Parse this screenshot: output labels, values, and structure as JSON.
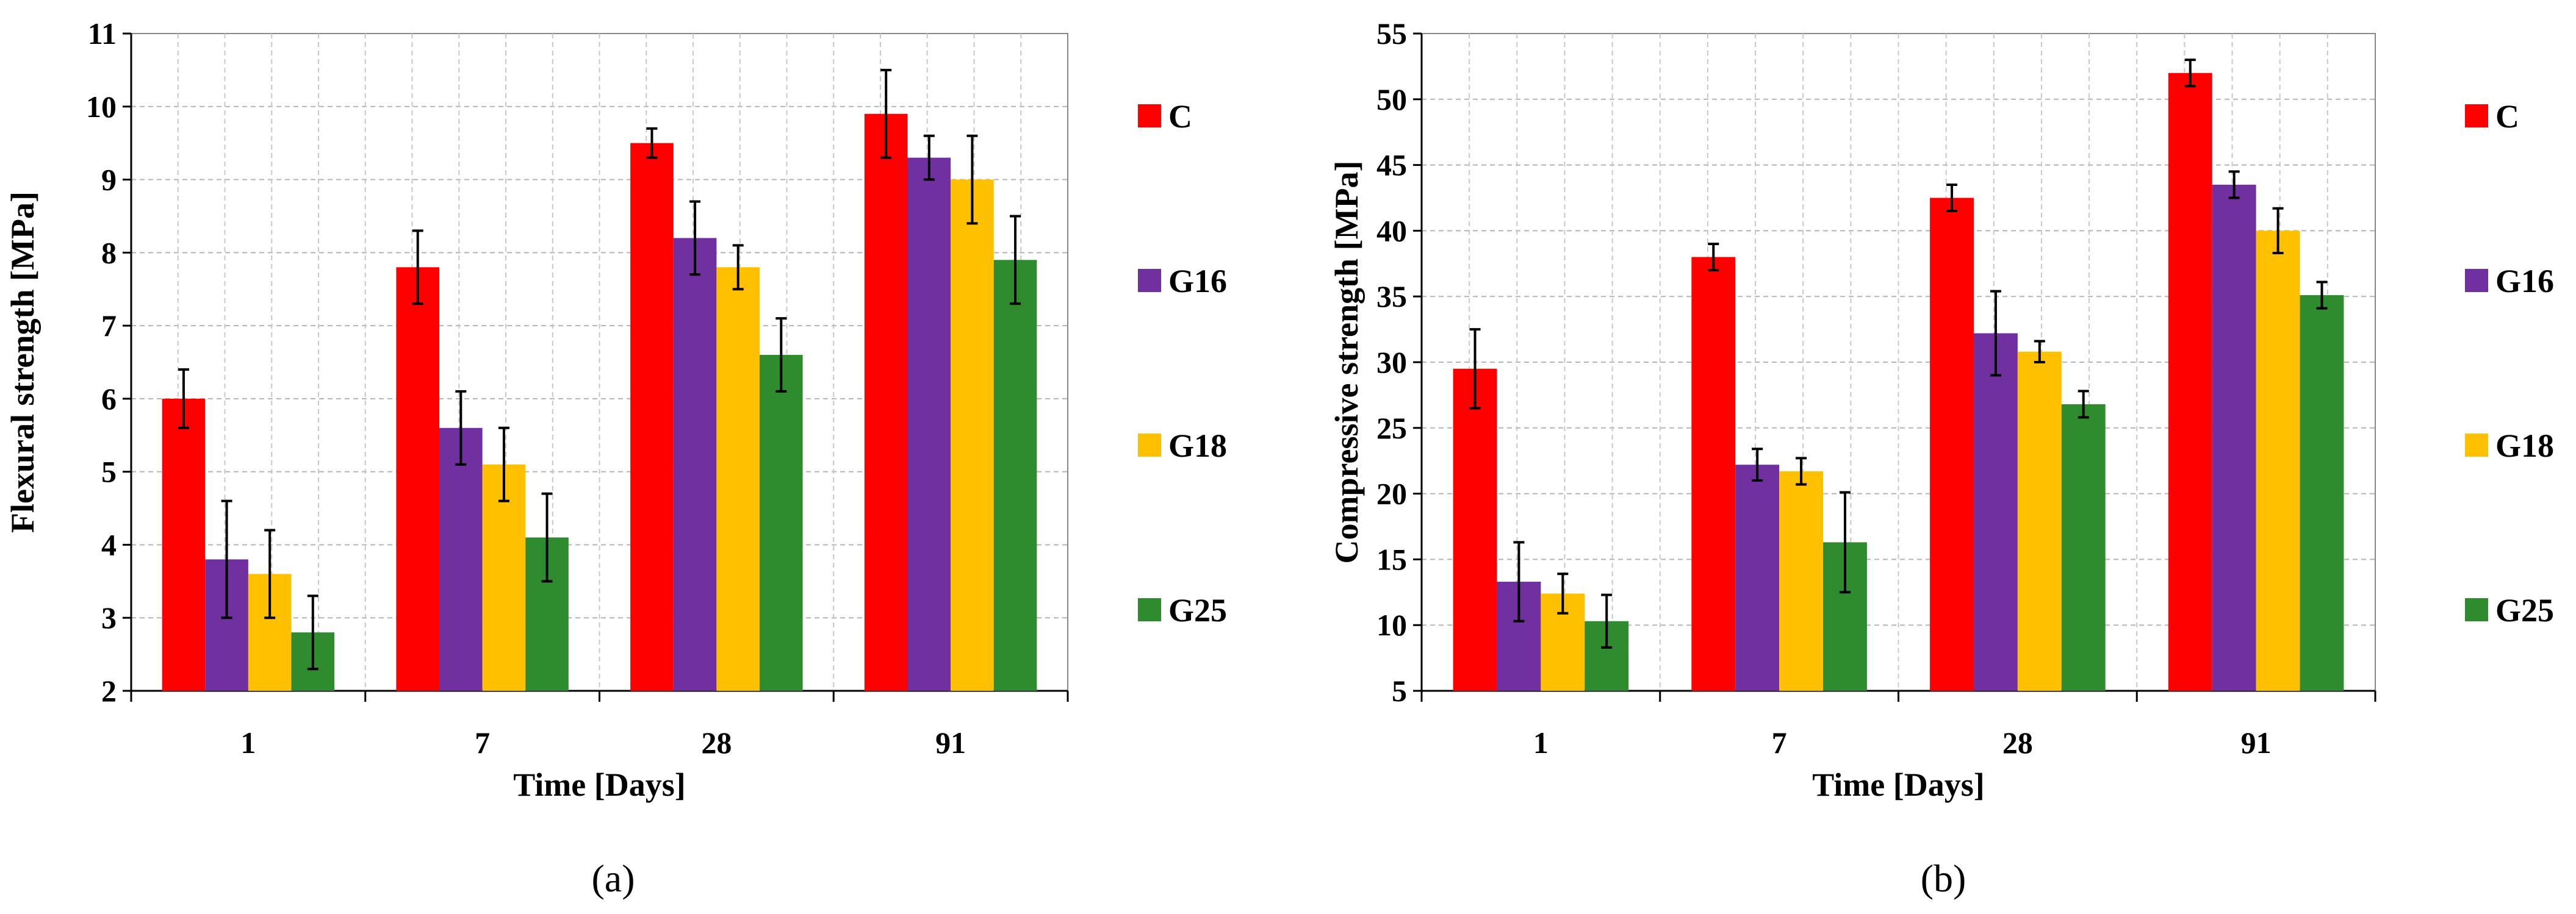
{
  "colors": {
    "C": "#ff0000",
    "G16": "#7030a0",
    "G18": "#ffc000",
    "G25": "#2e8b2e"
  },
  "chart_data": [
    {
      "type": "bar",
      "panel_label": "(a)",
      "categories": [
        "1",
        "7",
        "28",
        "91"
      ],
      "xlabel": "Time [Days]",
      "ylabel": "Flexural strength [MPa]",
      "ylim": [
        2,
        11
      ],
      "yticks": [
        "2",
        "3",
        "4",
        "5",
        "6",
        "7",
        "8",
        "9",
        "10",
        "11"
      ],
      "grid": true,
      "legend_position": "right",
      "series": [
        {
          "name": "C",
          "values": [
            6.0,
            7.8,
            9.5,
            9.9
          ],
          "errors": [
            0.4,
            0.5,
            0.2,
            0.6
          ]
        },
        {
          "name": "G16",
          "values": [
            3.8,
            5.6,
            8.2,
            9.3
          ],
          "errors": [
            0.8,
            0.5,
            0.5,
            0.3
          ]
        },
        {
          "name": "G18",
          "values": [
            3.6,
            5.1,
            7.8,
            9.0
          ],
          "errors": [
            0.6,
            0.5,
            0.3,
            0.6
          ]
        },
        {
          "name": "G25",
          "values": [
            2.8,
            4.1,
            6.6,
            7.9
          ],
          "errors": [
            0.5,
            0.6,
            0.5,
            0.6
          ]
        }
      ]
    },
    {
      "type": "bar",
      "panel_label": "(b)",
      "categories": [
        "1",
        "7",
        "28",
        "91"
      ],
      "xlabel": "Time [Days]",
      "ylabel": "Compressive strength [MPa]",
      "ylim": [
        5,
        55
      ],
      "yticks": [
        "5",
        "10",
        "15",
        "20",
        "25",
        "30",
        "35",
        "40",
        "45",
        "50",
        "55"
      ],
      "grid": true,
      "legend_position": "right",
      "series": [
        {
          "name": "C",
          "values": [
            29.5,
            38.0,
            42.5,
            52.0
          ],
          "errors": [
            3.0,
            1.0,
            1.0,
            1.0
          ]
        },
        {
          "name": "G16",
          "values": [
            13.3,
            22.2,
            32.2,
            43.5
          ],
          "errors": [
            3.0,
            1.2,
            3.2,
            1.0
          ]
        },
        {
          "name": "G18",
          "values": [
            12.4,
            21.7,
            30.8,
            40.0
          ],
          "errors": [
            1.5,
            1.0,
            0.8,
            1.7
          ]
        },
        {
          "name": "G25",
          "values": [
            10.3,
            16.3,
            26.8,
            35.1
          ],
          "errors": [
            2.0,
            3.8,
            1.0,
            1.0
          ]
        }
      ]
    }
  ]
}
